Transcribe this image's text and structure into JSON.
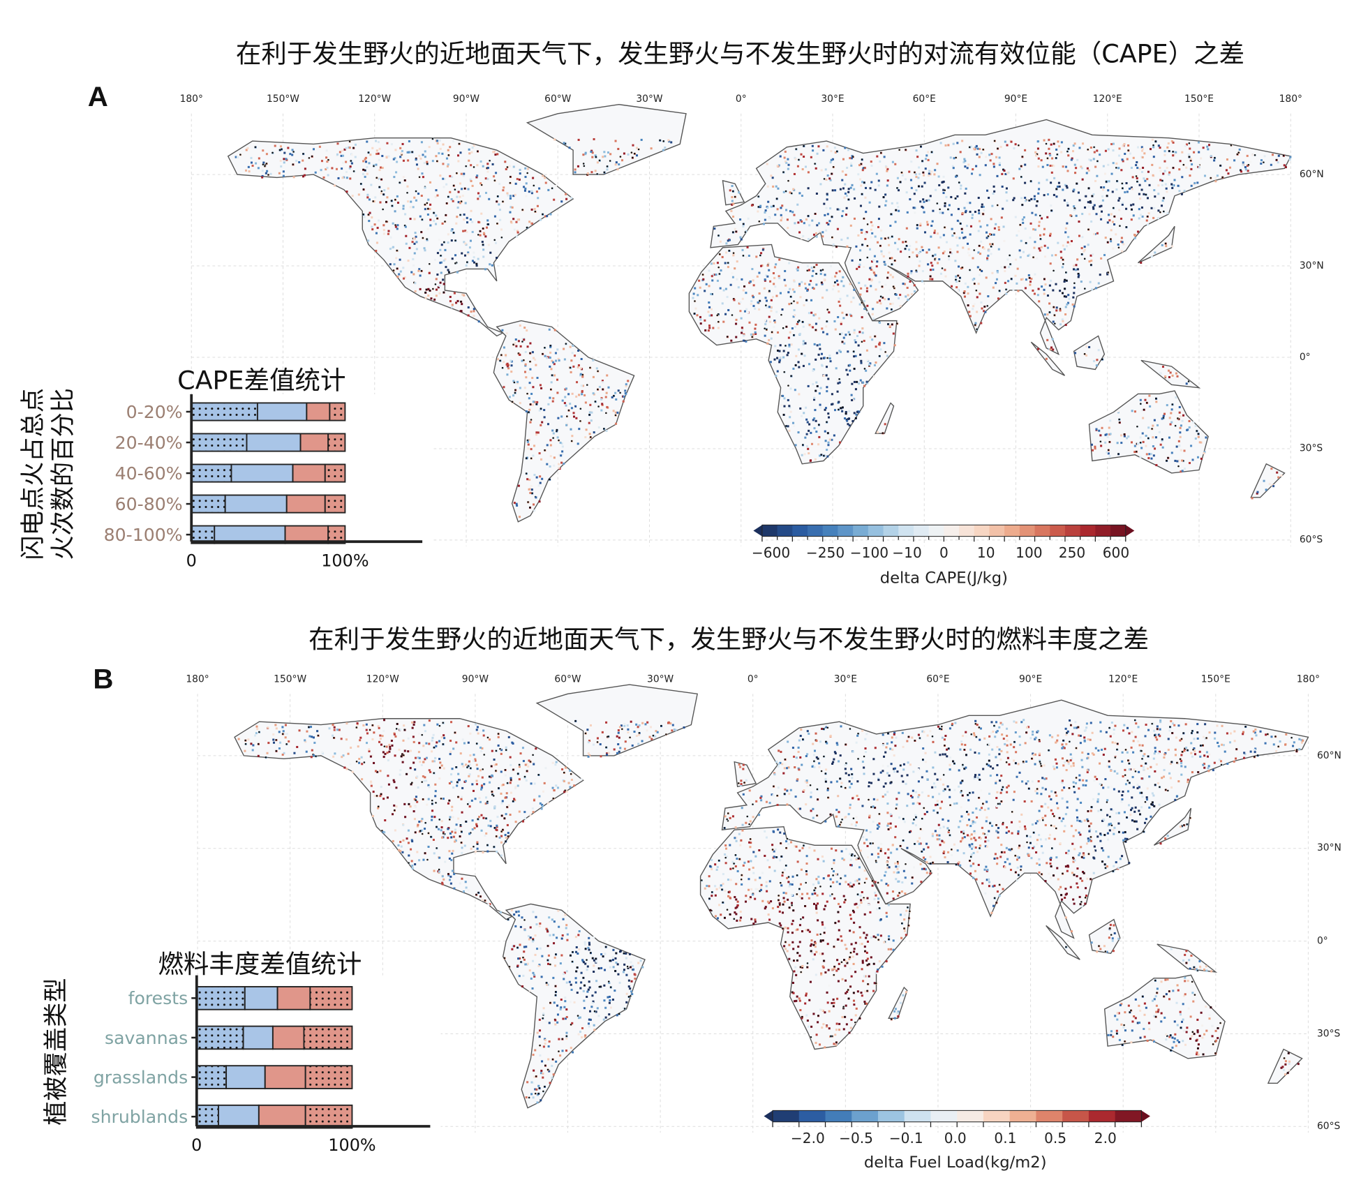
{
  "panel_a": {
    "letter": "A",
    "title": "在利于发生野火的近地面天气下，发生野火与不发生野火时的对流有效位能（CAPE）之差",
    "lon_labels": [
      "180°",
      "150°W",
      "120°W",
      "90°W",
      "60°W",
      "30°W",
      "0°",
      "30°E",
      "60°E",
      "90°E",
      "120°E",
      "150°E",
      "180°"
    ],
    "lat_labels": [
      "60°N",
      "30°N",
      "0°",
      "30°S",
      "60°S"
    ],
    "colorbar": {
      "label": "delta CAPE(J/kg)",
      "ticks": [
        "−600",
        "−250",
        "−100",
        "−10",
        "0",
        "10",
        "100",
        "250",
        "600"
      ]
    },
    "inset": {
      "title": "CAPE差值统计",
      "ylabel_lines": [
        "闪电点火占总点",
        "火次数的百分比"
      ],
      "xticks": [
        "0",
        "100%"
      ]
    }
  },
  "panel_b": {
    "letter": "B",
    "title": "在利于发生野火的近地面天气下，发生野火与不发生野火时的燃料丰度之差",
    "lon_labels": [
      "180°",
      "150°W",
      "120°W",
      "90°W",
      "60°W",
      "30°W",
      "0°",
      "30°E",
      "60°E",
      "90°E",
      "120°E",
      "150°E",
      "180°"
    ],
    "lat_labels": [
      "60°N",
      "30°N",
      "0°",
      "30°S",
      "60°S"
    ],
    "colorbar": {
      "label": "delta Fuel Load(kg/m2)",
      "ticks": [
        "−2.0",
        "−0.5",
        "−0.1",
        "0.0",
        "0.1",
        "0.5",
        "2.0"
      ]
    },
    "inset": {
      "title": "燃料丰度差值统计",
      "ylabel_lines": [
        "植被覆盖类型"
      ],
      "xticks": [
        "0",
        "100%"
      ]
    }
  },
  "colors": {
    "neg_dotted": "#a6c3e6",
    "neg": "#a9c5e7",
    "pos": "#e0968a",
    "pos_dotted": "#e0968a",
    "label_a": "#9b7f72",
    "label_b": "#7fa3a3"
  },
  "chart_data": [
    {
      "type": "bar",
      "title": "CAPE差值统计",
      "ylabel": "闪电点火占总点火次数的百分比",
      "orientation": "horizontal-stacked",
      "categories": [
        "0-20%",
        "20-40%",
        "40-60%",
        "60-80%",
        "80-100%"
      ],
      "series": [
        {
          "name": "negative (significant, dotted)",
          "values": [
            43,
            36,
            26,
            22,
            15
          ]
        },
        {
          "name": "negative",
          "values": [
            32,
            35,
            40,
            40,
            46
          ]
        },
        {
          "name": "positive",
          "values": [
            15,
            18,
            21,
            25,
            28
          ]
        },
        {
          "name": "positive (significant, dotted)",
          "values": [
            10,
            11,
            13,
            13,
            11
          ]
        }
      ],
      "xlim": [
        0,
        100
      ]
    },
    {
      "type": "bar",
      "title": "燃料丰度差值统计",
      "ylabel": "植被覆盖类型",
      "orientation": "horizontal-stacked",
      "categories": [
        "forests",
        "savannas",
        "grasslands",
        "shrublands"
      ],
      "series": [
        {
          "name": "negative (significant, dotted)",
          "values": [
            31,
            30,
            19,
            14
          ]
        },
        {
          "name": "negative",
          "values": [
            21,
            19,
            25,
            26
          ]
        },
        {
          "name": "positive",
          "values": [
            21,
            20,
            26,
            30
          ]
        },
        {
          "name": "positive (significant, dotted)",
          "values": [
            27,
            31,
            30,
            30
          ]
        }
      ],
      "xlim": [
        0,
        100
      ]
    },
    {
      "type": "heatmap",
      "title": "delta CAPE map",
      "colorbar_label": "delta CAPE(J/kg)",
      "levels": 24,
      "range": [
        -600,
        600
      ]
    },
    {
      "type": "heatmap",
      "title": "delta Fuel Load map",
      "colorbar_label": "delta Fuel Load(kg/m2)",
      "levels": 14,
      "range": [
        -2.0,
        2.0
      ]
    }
  ]
}
